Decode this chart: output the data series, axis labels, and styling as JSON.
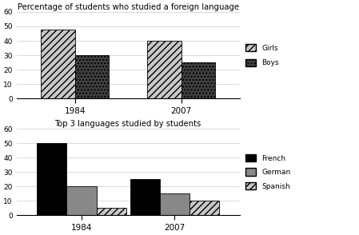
{
  "chart1": {
    "title": "Percentage of students who studied a foreign language",
    "years": [
      "1984",
      "2007"
    ],
    "girls": [
      48,
      40
    ],
    "boys": [
      30,
      25
    ],
    "ylim": [
      0,
      60
    ],
    "yticks": [
      0,
      10,
      20,
      30,
      40,
      50,
      60
    ]
  },
  "chart2": {
    "title": "Top 3 languages studied by students",
    "years": [
      "1984",
      "2007"
    ],
    "french": [
      50,
      25
    ],
    "german": [
      20,
      15
    ],
    "spanish": [
      5,
      10
    ],
    "ylim": [
      0,
      60
    ],
    "yticks": [
      0,
      10,
      20,
      30,
      40,
      50,
      60
    ]
  },
  "bar_width": 0.32,
  "background_color": "#ffffff",
  "figsize": [
    4.49,
    2.94
  ],
  "dpi": 100
}
